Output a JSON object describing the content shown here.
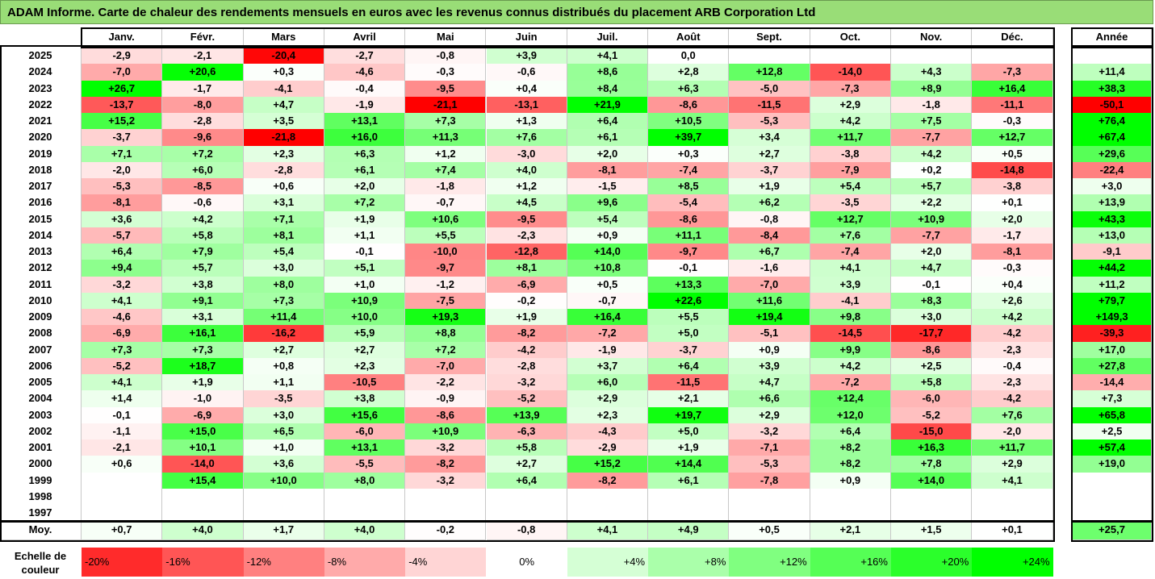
{
  "title": "ADAM Informe. Carte de chaleur des rendements mensuels en euros avec les revenus connus distribués du placement ARB Corporation Ltd",
  "months": [
    "Janv.",
    "Févr.",
    "Mars",
    "Avril",
    "Mai",
    "Juin",
    "Juil.",
    "Août",
    "Sept.",
    "Oct.",
    "Nov.",
    "Déc."
  ],
  "annual_header": "Année",
  "avg_label": "Moy.",
  "scale_label": "Echelle de couleur",
  "chart_data": {
    "type": "heatmap",
    "title": "ADAM Informe. Carte de chaleur des rendements mensuels en euros avec les revenus connus distribués du placement ARB Corporation Ltd",
    "rows": [
      {
        "year": "2025",
        "m": [
          "-2,9",
          "-2,1",
          "-20,4",
          "-2,7",
          "-0,8",
          "+3,9",
          "+4,1",
          "0,0",
          "",
          "",
          "",
          ""
        ],
        "a": ""
      },
      {
        "year": "2024",
        "m": [
          "-7,0",
          "+20,6",
          "+0,3",
          "-4,6",
          "-0,3",
          "-0,6",
          "+8,6",
          "+2,8",
          "+12,8",
          "-14,0",
          "+4,3",
          "-7,3"
        ],
        "a": "+11,4"
      },
      {
        "year": "2023",
        "m": [
          "+26,7",
          "-1,7",
          "-4,1",
          "-0,4",
          "-9,5",
          "+0,4",
          "+8,4",
          "+6,3",
          "-5,0",
          "-7,3",
          "+8,9",
          "+16,4"
        ],
        "a": "+38,3"
      },
      {
        "year": "2022",
        "m": [
          "-13,7",
          "-8,0",
          "+4,7",
          "-1,9",
          "-21,1",
          "-13,1",
          "+21,9",
          "-8,6",
          "-11,5",
          "+2,9",
          "-1,8",
          "-11,1"
        ],
        "a": "-50,1"
      },
      {
        "year": "2021",
        "m": [
          "+15,2",
          "-2,8",
          "+3,5",
          "+13,1",
          "+7,3",
          "+1,3",
          "+6,4",
          "+10,5",
          "-5,3",
          "+4,2",
          "+7,5",
          "-0,3"
        ],
        "a": "+76,4"
      },
      {
        "year": "2020",
        "m": [
          "-3,7",
          "-9,6",
          "-21,8",
          "+16,0",
          "+11,3",
          "+7,6",
          "+6,1",
          "+39,7",
          "+3,4",
          "+11,7",
          "-7,7",
          "+12,7"
        ],
        "a": "+67,4"
      },
      {
        "year": "2019",
        "m": [
          "+7,1",
          "+7,2",
          "+2,3",
          "+6,3",
          "+1,2",
          "-3,0",
          "+2,0",
          "+0,3",
          "+2,7",
          "-3,8",
          "+4,2",
          "+0,5"
        ],
        "a": "+29,6"
      },
      {
        "year": "2018",
        "m": [
          "-2,0",
          "+6,0",
          "-2,8",
          "+6,1",
          "+7,4",
          "+4,0",
          "-8,1",
          "-7,4",
          "-3,7",
          "-7,9",
          "+0,2",
          "-14,8"
        ],
        "a": "-22,4"
      },
      {
        "year": "2017",
        "m": [
          "-5,3",
          "-8,5",
          "+0,6",
          "+2,0",
          "-1,8",
          "+1,2",
          "-1,5",
          "+8,5",
          "+1,9",
          "+5,4",
          "+5,7",
          "-3,8"
        ],
        "a": "+3,0"
      },
      {
        "year": "2016",
        "m": [
          "-8,1",
          "-0,6",
          "+3,1",
          "+7,2",
          "-0,7",
          "+4,5",
          "+9,6",
          "-5,4",
          "+6,2",
          "-3,5",
          "+2,2",
          "+0,1"
        ],
        "a": "+13,9"
      },
      {
        "year": "2015",
        "m": [
          "+3,6",
          "+4,2",
          "+7,1",
          "+1,9",
          "+10,6",
          "-9,5",
          "+5,4",
          "-8,6",
          "-0,8",
          "+12,7",
          "+10,9",
          "+2,0"
        ],
        "a": "+43,3"
      },
      {
        "year": "2014",
        "m": [
          "-5,7",
          "+5,8",
          "+8,1",
          "+1,1",
          "+5,5",
          "-2,3",
          "+0,9",
          "+11,1",
          "-8,4",
          "+7,6",
          "-7,7",
          "-1,7"
        ],
        "a": "+13,0"
      },
      {
        "year": "2013",
        "m": [
          "+6,4",
          "+7,9",
          "+5,4",
          "-0,1",
          "-10,0",
          "-12,8",
          "+14,0",
          "-9,7",
          "+6,7",
          "-7,4",
          "+2,0",
          "-8,1"
        ],
        "a": "-9,1"
      },
      {
        "year": "2012",
        "m": [
          "+9,4",
          "+5,7",
          "+3,0",
          "+5,1",
          "-9,7",
          "+8,1",
          "+10,8",
          "-0,1",
          "-1,6",
          "+4,1",
          "+4,7",
          "-0,3"
        ],
        "a": "+44,2"
      },
      {
        "year": "2011",
        "m": [
          "-3,2",
          "+3,8",
          "+8,0",
          "+1,0",
          "-1,2",
          "-6,9",
          "+0,5",
          "+13,3",
          "-7,0",
          "+3,9",
          "-0,1",
          "+0,4"
        ],
        "a": "+11,2"
      },
      {
        "year": "2010",
        "m": [
          "+4,1",
          "+9,1",
          "+7,3",
          "+10,9",
          "-7,5",
          "-0,2",
          "-0,7",
          "+22,6",
          "+11,6",
          "-4,1",
          "+8,3",
          "+2,6"
        ],
        "a": "+79,7"
      },
      {
        "year": "2009",
        "m": [
          "-4,6",
          "+3,1",
          "+11,4",
          "+10,0",
          "+19,3",
          "+1,9",
          "+16,4",
          "+5,5",
          "+19,4",
          "+9,8",
          "+3,0",
          "+4,2"
        ],
        "a": "+149,3"
      },
      {
        "year": "2008",
        "m": [
          "-6,9",
          "+16,1",
          "-16,2",
          "+5,9",
          "+8,8",
          "-8,2",
          "-7,2",
          "+5,0",
          "-5,1",
          "-14,5",
          "-17,7",
          "-4,2"
        ],
        "a": "-39,3"
      },
      {
        "year": "2007",
        "m": [
          "+7,3",
          "+7,3",
          "+2,7",
          "+2,7",
          "+7,2",
          "-4,2",
          "-1,9",
          "-3,7",
          "+0,9",
          "+9,9",
          "-8,6",
          "-2,3"
        ],
        "a": "+17,0"
      },
      {
        "year": "2006",
        "m": [
          "-5,2",
          "+18,7",
          "+0,8",
          "+2,3",
          "-7,0",
          "-2,8",
          "+3,7",
          "+6,4",
          "+3,9",
          "+4,2",
          "+2,5",
          "-0,4"
        ],
        "a": "+27,8"
      },
      {
        "year": "2005",
        "m": [
          "+4,1",
          "+1,9",
          "+1,1",
          "-10,5",
          "-2,2",
          "-3,2",
          "+6,0",
          "-11,5",
          "+4,7",
          "-7,2",
          "+5,8",
          "-2,3"
        ],
        "a": "-14,4"
      },
      {
        "year": "2004",
        "m": [
          "+1,4",
          "-1,0",
          "-3,5",
          "+3,8",
          "-0,9",
          "-5,2",
          "+2,9",
          "+2,1",
          "+6,6",
          "+12,4",
          "-6,0",
          "-4,2"
        ],
        "a": "+7,3"
      },
      {
        "year": "2003",
        "m": [
          "-0,1",
          "-6,9",
          "+3,0",
          "+15,6",
          "-8,6",
          "+13,9",
          "+2,3",
          "+19,7",
          "+2,9",
          "+12,0",
          "-5,2",
          "+7,6"
        ],
        "a": "+65,8"
      },
      {
        "year": "2002",
        "m": [
          "-1,1",
          "+15,0",
          "+6,5",
          "-6,0",
          "+10,9",
          "-6,3",
          "-4,3",
          "+5,0",
          "-3,2",
          "+6,4",
          "-15,0",
          "-2,0"
        ],
        "a": "+2,5"
      },
      {
        "year": "2001",
        "m": [
          "-2,1",
          "+10,1",
          "+1,0",
          "+13,1",
          "-3,2",
          "+5,8",
          "-2,9",
          "+1,9",
          "-7,1",
          "+8,2",
          "+16,3",
          "+11,7"
        ],
        "a": "+57,4"
      },
      {
        "year": "2000",
        "m": [
          "+0,6",
          "-14,0",
          "+3,6",
          "-5,5",
          "-8,2",
          "+2,7",
          "+15,2",
          "+14,4",
          "-5,3",
          "+8,2",
          "+7,8",
          "+2,9"
        ],
        "a": "+19,0"
      },
      {
        "year": "1999",
        "m": [
          "",
          "+15,4",
          "+10,0",
          "+8,0",
          "-3,2",
          "+6,4",
          "-8,2",
          "+6,1",
          "-7,8",
          "+0,9",
          "+14,0",
          "+4,1"
        ],
        "a": ""
      },
      {
        "year": "1998",
        "m": [
          "",
          "",
          "",
          "",
          "",
          "",
          "",
          "",
          "",
          "",
          "",
          ""
        ],
        "a": ""
      },
      {
        "year": "1997",
        "m": [
          "",
          "",
          "",
          "",
          "",
          "",
          "",
          "",
          "",
          "",
          "",
          ""
        ],
        "a": ""
      }
    ],
    "averages": {
      "m": [
        "+0,7",
        "+4,0",
        "+1,7",
        "+4,0",
        "-0,2",
        "-0,8",
        "+4,1",
        "+4,9",
        "+0,5",
        "+2,1",
        "+1,5",
        "+0,1"
      ],
      "a": "+25,7"
    },
    "scale": [
      "-20%",
      "-16%",
      "-12%",
      "-8%",
      "-4%",
      "0%",
      "+4%",
      "+8%",
      "+12%",
      "+16%",
      "+20%",
      "+24%"
    ],
    "scale_values": [
      -20,
      -16,
      -12,
      -8,
      -4,
      0,
      4,
      8,
      12,
      16,
      20,
      24
    ],
    "colors": {
      "negative": "#ff0000",
      "positive": "#00ff00",
      "neutral": "#ffffff"
    }
  }
}
